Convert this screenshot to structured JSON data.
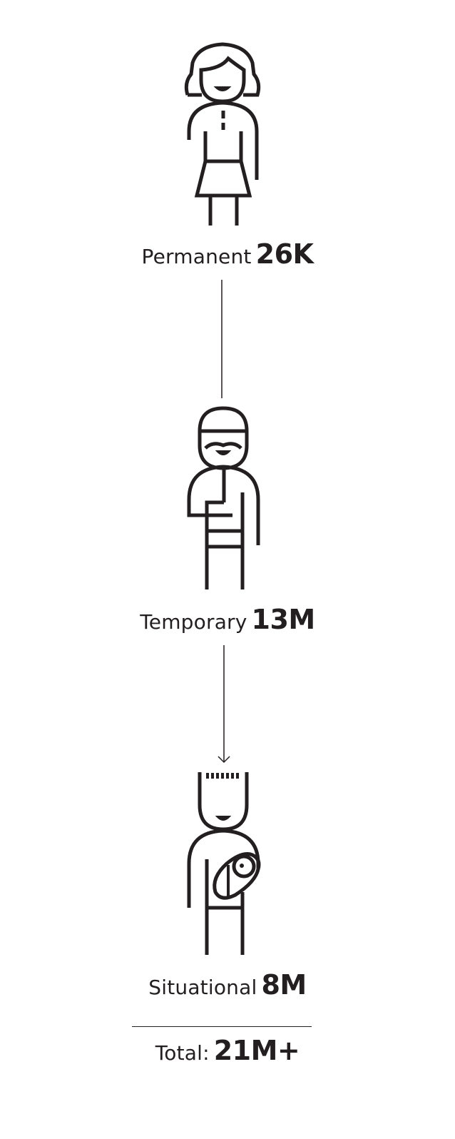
{
  "diagram": {
    "colors": {
      "ink": "#231f20",
      "background": "#ffffff"
    },
    "stages": [
      {
        "id": "permanent",
        "label": "Permanent",
        "value": "26K",
        "icon": "woman-figure-icon"
      },
      {
        "id": "temporary",
        "label": "Temporary",
        "value": "13M",
        "icon": "man-with-arm-injury-icon"
      },
      {
        "id": "situational",
        "label": "Situational",
        "value": "8M",
        "icon": "parent-holding-baby-icon"
      }
    ],
    "total": {
      "label": "Total:",
      "value": "21M+"
    }
  }
}
